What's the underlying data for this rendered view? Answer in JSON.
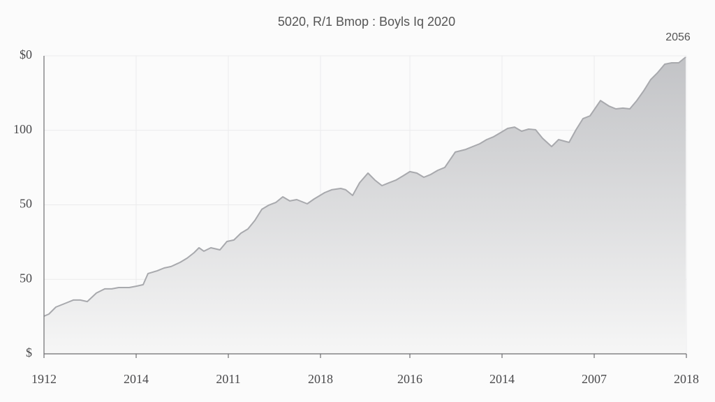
{
  "chart_data": {
    "type": "area",
    "title": "5020, R/1 Bmop : Boyls Iq 2020",
    "annotation": "2056",
    "x": [
      0,
      7,
      17,
      32,
      42,
      52,
      62,
      75,
      87,
      97,
      107,
      122,
      132,
      142,
      149,
      162,
      172,
      182,
      195,
      205,
      215,
      222,
      229,
      239,
      252,
      262,
      272,
      282,
      292,
      302,
      312,
      322,
      332,
      342,
      352,
      362,
      377,
      387,
      402,
      412,
      425,
      432,
      442,
      452,
      464,
      474,
      484,
      494,
      504,
      514,
      524,
      534,
      544,
      554,
      564,
      574,
      589,
      604,
      614,
      624,
      634,
      644,
      654,
      664,
      674,
      684,
      694,
      704,
      714,
      727,
      737,
      752,
      762,
      772,
      782,
      797,
      809,
      819,
      829,
      839,
      849,
      859,
      869,
      879,
      889,
      899,
      909,
      919
    ],
    "values": [
      25.3,
      26.7,
      31.4,
      34.2,
      36.1,
      36.1,
      35.1,
      40.8,
      43.6,
      43.6,
      44.5,
      44.5,
      45.4,
      46.4,
      53.9,
      55.7,
      57.6,
      58.6,
      61.4,
      64.2,
      67.9,
      71.2,
      68.9,
      71.2,
      69.8,
      75.4,
      76.4,
      81.0,
      83.8,
      89.5,
      97.0,
      99.8,
      101.6,
      105.4,
      102.6,
      103.5,
      100.7,
      104.0,
      108.2,
      110.1,
      111.0,
      110.1,
      106.3,
      114.8,
      121.3,
      116.6,
      112.9,
      114.8,
      116.6,
      119.4,
      122.3,
      121.3,
      118.5,
      120.4,
      123.2,
      125.1,
      135.4,
      137.2,
      139.1,
      141.0,
      143.8,
      145.7,
      148.5,
      151.3,
      152.2,
      149.4,
      150.8,
      150.4,
      144.7,
      139.1,
      143.8,
      141.9,
      150.4,
      157.9,
      159.7,
      170.0,
      166.3,
      164.4,
      164.9,
      164.4,
      170.0,
      176.6,
      184.1,
      188.8,
      194.4,
      195.3,
      195.3,
      199.1
    ],
    "color": "#a8a9ad",
    "xlim": [
      0,
      920
    ],
    "xticks": [
      {
        "value": 0,
        "label": "1912"
      },
      {
        "value": 132,
        "label": "2014"
      },
      {
        "value": 264,
        "label": "2011"
      },
      {
        "value": 396,
        "label": "2018"
      },
      {
        "value": 524,
        "label": "2016"
      },
      {
        "value": 656,
        "label": "2014"
      },
      {
        "value": 788,
        "label": "2007"
      },
      {
        "value": 920,
        "label": "2018"
      }
    ],
    "ylim": [
      0,
      200
    ],
    "yticks": [
      {
        "value": 0,
        "label": "$"
      },
      50,
      {
        "value": 100,
        "label": "50"
      },
      {
        "value": 150,
        "label": "100"
      },
      {
        "value": 200,
        "label": "$0"
      }
    ],
    "grid": true
  }
}
